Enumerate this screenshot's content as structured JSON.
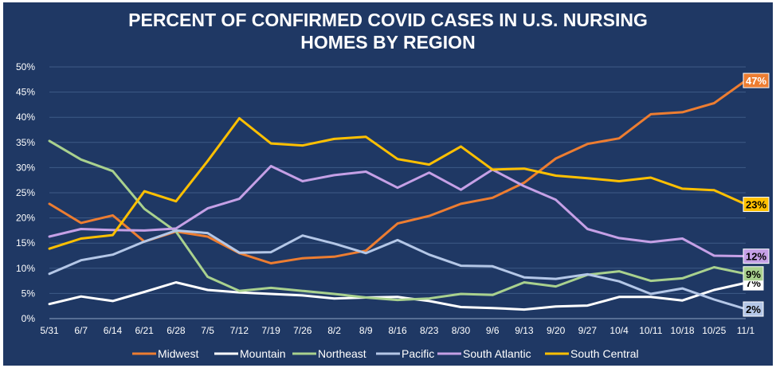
{
  "chart_data": {
    "type": "line",
    "title_lines": [
      "PERCENT OF CONFIRMED COVID CASES IN U.S. NURSING",
      "HOMES BY REGION"
    ],
    "categories": [
      "5/31",
      "6/7",
      "6/14",
      "6/21",
      "6/28",
      "7/5",
      "7/12",
      "7/19",
      "7/26",
      "8/2",
      "8/9",
      "8/16",
      "8/23",
      "8/30",
      "9/6",
      "9/13",
      "9/20",
      "9/27",
      "10/4",
      "10/11",
      "10/18",
      "10/25",
      "11/1"
    ],
    "y_ticks": [
      "0%",
      "5%",
      "10%",
      "15%",
      "20%",
      "25%",
      "30%",
      "35%",
      "40%",
      "45%",
      "50%"
    ],
    "ylim": [
      0,
      50
    ],
    "grid": true,
    "legend_position": "bottom",
    "series": [
      {
        "name": "Midwest",
        "color": "#ed7d31",
        "values": [
          22.8,
          19.0,
          20.5,
          15.3,
          17.3,
          16.3,
          13.0,
          11.0,
          12.0,
          12.3,
          13.5,
          18.9,
          20.4,
          22.8,
          24.0,
          27.0,
          31.8,
          34.7,
          35.8,
          40.6,
          41.0,
          42.8,
          47.3
        ],
        "end_label": "47%",
        "end_label_bg": "#ed7d31",
        "end_label_color": "#ffffff"
      },
      {
        "name": "Mountain",
        "color": "#ffffff",
        "values": [
          2.9,
          4.4,
          3.5,
          5.3,
          7.2,
          5.7,
          5.2,
          4.9,
          4.6,
          4.0,
          4.2,
          4.3,
          3.5,
          2.3,
          2.1,
          1.8,
          2.4,
          2.6,
          4.3,
          4.3,
          3.6,
          5.7,
          7.1
        ],
        "end_label": "7%",
        "end_label_bg": "#ffffff",
        "end_label_color": "#000000"
      },
      {
        "name": "Northeast",
        "color": "#a9d18e",
        "values": [
          35.3,
          31.6,
          29.3,
          21.8,
          17.3,
          8.3,
          5.5,
          6.1,
          5.5,
          4.9,
          4.2,
          3.7,
          4.0,
          4.9,
          4.7,
          7.2,
          6.4,
          8.7,
          9.4,
          7.5,
          8.0,
          10.2,
          8.9
        ],
        "end_label": "9%",
        "end_label_bg": "#a9d18e",
        "end_label_color": "#000000"
      },
      {
        "name": "Pacific",
        "color": "#b4c7e7",
        "values": [
          8.9,
          11.6,
          12.7,
          15.3,
          17.5,
          17.0,
          13.1,
          13.2,
          16.5,
          14.9,
          13.0,
          15.6,
          12.7,
          10.5,
          10.4,
          8.2,
          7.9,
          8.8,
          7.4,
          4.9,
          6.0,
          3.8,
          1.9
        ],
        "end_label": "2%",
        "end_label_bg": "#b4c7e7",
        "end_label_color": "#000000"
      },
      {
        "name": "South Atlantic",
        "color": "#c5a0e6",
        "values": [
          16.3,
          17.8,
          17.6,
          17.5,
          17.9,
          21.9,
          23.8,
          30.3,
          27.3,
          28.5,
          29.2,
          26.0,
          29.0,
          25.6,
          29.6,
          26.3,
          23.6,
          17.8,
          16.0,
          15.2,
          15.9,
          12.5,
          12.4
        ],
        "end_label": "12%",
        "end_label_bg": "#c5a0e6",
        "end_label_color": "#000000"
      },
      {
        "name": "South Central",
        "color": "#ffc000",
        "values": [
          13.9,
          15.9,
          16.6,
          25.3,
          23.3,
          31.3,
          39.8,
          34.8,
          34.4,
          35.7,
          36.1,
          31.7,
          30.6,
          34.2,
          29.6,
          29.8,
          28.4,
          27.9,
          27.3,
          28.0,
          25.8,
          25.5,
          22.7
        ],
        "end_label": "23%",
        "end_label_bg": "#ffc000",
        "end_label_color": "#000000"
      }
    ]
  }
}
